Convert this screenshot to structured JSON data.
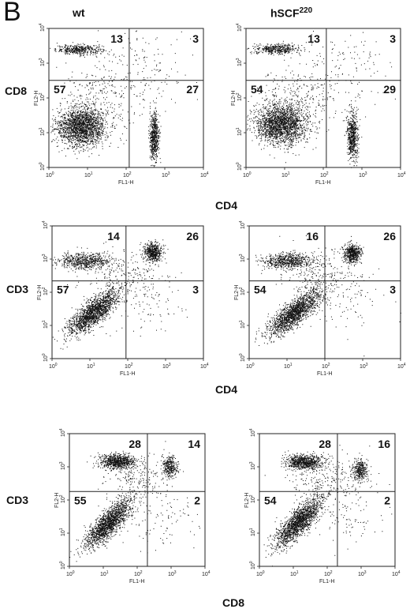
{
  "figure": {
    "panel_letter": "B",
    "columns": [
      {
        "id": "wt",
        "label": "wt",
        "sup": ""
      },
      {
        "id": "hscf",
        "label": "hSCF",
        "sup": "220"
      }
    ],
    "rows": [
      {
        "y_label": "CD8",
        "x_label": "CD4"
      },
      {
        "y_label": "CD3",
        "x_label": "CD4"
      },
      {
        "y_label": "CD3",
        "x_label": "CD8"
      }
    ],
    "axis_titles": {
      "x": "FL1-H",
      "y": "FL2-H"
    },
    "ticks": {
      "base": "10",
      "exponents": [
        "0",
        "1",
        "2",
        "3",
        "4"
      ]
    }
  },
  "chart_data": [
    {
      "type": "scatter",
      "row": 0,
      "column": "wt",
      "xlabel": "FL1-H",
      "ylabel": "FL2-H",
      "scale": "log",
      "xlim": [
        1,
        10000
      ],
      "ylim": [
        1,
        10000
      ],
      "quadrant_gate": {
        "x": 120,
        "y": 320
      },
      "quadrants": {
        "upper_left": 13,
        "upper_right": 3,
        "lower_left": 57,
        "lower_right": 27
      },
      "clusters": [
        {
          "x": 6,
          "y": 2500,
          "sx": 0.3,
          "sy": 0.07,
          "n": 420
        },
        {
          "x": 7,
          "y": 15,
          "sx": 0.32,
          "sy": 0.28,
          "n": 2000
        },
        {
          "x": 520,
          "y": 8,
          "sx": 0.06,
          "sy": 0.33,
          "n": 620
        },
        {
          "x": 300,
          "y": 600,
          "sx": 0.6,
          "sy": 0.6,
          "n": 160
        },
        {
          "x": 20,
          "y": 120,
          "sx": 0.5,
          "sy": 0.45,
          "n": 220
        }
      ]
    },
    {
      "type": "scatter",
      "row": 0,
      "column": "hSCF220",
      "xlabel": "FL1-H",
      "ylabel": "FL2-H",
      "scale": "log",
      "xlim": [
        1,
        10000
      ],
      "ylim": [
        1,
        10000
      ],
      "quadrant_gate": {
        "x": 120,
        "y": 320
      },
      "quadrants": {
        "upper_left": 13,
        "upper_right": 3,
        "lower_left": 54,
        "lower_right": 29
      },
      "clusters": [
        {
          "x": 6,
          "y": 2600,
          "sx": 0.3,
          "sy": 0.07,
          "n": 440
        },
        {
          "x": 8,
          "y": 18,
          "sx": 0.33,
          "sy": 0.3,
          "n": 2100
        },
        {
          "x": 560,
          "y": 8,
          "sx": 0.07,
          "sy": 0.33,
          "n": 640
        },
        {
          "x": 300,
          "y": 600,
          "sx": 0.6,
          "sy": 0.6,
          "n": 150
        },
        {
          "x": 20,
          "y": 120,
          "sx": 0.5,
          "sy": 0.45,
          "n": 220
        }
      ]
    },
    {
      "type": "scatter",
      "row": 1,
      "column": "wt",
      "xlabel": "FL1-H",
      "ylabel": "FL2-H",
      "scale": "log",
      "xlim": [
        1,
        10000
      ],
      "ylim": [
        1,
        10000
      ],
      "quadrant_gate": {
        "x": 90,
        "y": 220
      },
      "quadrants": {
        "upper_left": 14,
        "upper_right": 26,
        "lower_left": 57,
        "lower_right": 3
      },
      "clusters": [
        {
          "x": 7,
          "y": 900,
          "sx": 0.35,
          "sy": 0.12,
          "n": 620
        },
        {
          "x": 450,
          "y": 1600,
          "sx": 0.12,
          "sy": 0.14,
          "n": 560
        },
        {
          "x": 12,
          "y": 25,
          "sx": 0.34,
          "sy": 0.34,
          "n": 1700,
          "rho": 0.8
        },
        {
          "x": 300,
          "y": 60,
          "sx": 0.55,
          "sy": 0.55,
          "n": 120
        },
        {
          "x": 60,
          "y": 400,
          "sx": 0.5,
          "sy": 0.35,
          "n": 200
        }
      ]
    },
    {
      "type": "scatter",
      "row": 1,
      "column": "hSCF220",
      "xlabel": "FL1-H",
      "ylabel": "FL2-H",
      "scale": "log",
      "xlim": [
        1,
        10000
      ],
      "ylim": [
        1,
        10000
      ],
      "quadrant_gate": {
        "x": 100,
        "y": 220
      },
      "quadrants": {
        "upper_left": 16,
        "upper_right": 26,
        "lower_left": 54,
        "lower_right": 3
      },
      "clusters": [
        {
          "x": 10,
          "y": 900,
          "sx": 0.35,
          "sy": 0.12,
          "n": 660
        },
        {
          "x": 520,
          "y": 1500,
          "sx": 0.12,
          "sy": 0.14,
          "n": 560
        },
        {
          "x": 16,
          "y": 25,
          "sx": 0.34,
          "sy": 0.34,
          "n": 1700,
          "rho": 0.8
        },
        {
          "x": 300,
          "y": 60,
          "sx": 0.55,
          "sy": 0.55,
          "n": 120
        },
        {
          "x": 60,
          "y": 400,
          "sx": 0.5,
          "sy": 0.35,
          "n": 200
        }
      ]
    },
    {
      "type": "scatter",
      "row": 2,
      "column": "wt",
      "xlabel": "FL1-H",
      "ylabel": "FL2-H",
      "scale": "log",
      "xlim": [
        1,
        10000
      ],
      "ylim": [
        1,
        10000
      ],
      "quadrant_gate": {
        "x": 200,
        "y": 180
      },
      "quadrants": {
        "upper_left": 28,
        "upper_right": 14,
        "lower_left": 55,
        "lower_right": 2
      },
      "clusters": [
        {
          "x": 25,
          "y": 1500,
          "sx": 0.25,
          "sy": 0.11,
          "n": 800
        },
        {
          "x": 900,
          "y": 1000,
          "sx": 0.11,
          "sy": 0.16,
          "n": 320
        },
        {
          "x": 14,
          "y": 20,
          "sx": 0.34,
          "sy": 0.36,
          "n": 1700,
          "rho": 0.8
        },
        {
          "x": 600,
          "y": 40,
          "sx": 0.5,
          "sy": 0.5,
          "n": 100
        },
        {
          "x": 80,
          "y": 500,
          "sx": 0.5,
          "sy": 0.35,
          "n": 220
        }
      ]
    },
    {
      "type": "scatter",
      "row": 2,
      "column": "hSCF220",
      "xlabel": "FL1-H",
      "ylabel": "FL2-H",
      "scale": "log",
      "xlim": [
        1,
        10000
      ],
      "ylim": [
        1,
        10000
      ],
      "quadrant_gate": {
        "x": 200,
        "y": 180
      },
      "quadrants": {
        "upper_left": 28,
        "upper_right": 16,
        "lower_left": 54,
        "lower_right": 2
      },
      "clusters": [
        {
          "x": 20,
          "y": 1400,
          "sx": 0.27,
          "sy": 0.11,
          "n": 820
        },
        {
          "x": 900,
          "y": 800,
          "sx": 0.11,
          "sy": 0.16,
          "n": 340
        },
        {
          "x": 14,
          "y": 22,
          "sx": 0.34,
          "sy": 0.36,
          "n": 1700,
          "rho": 0.8
        },
        {
          "x": 600,
          "y": 40,
          "sx": 0.5,
          "sy": 0.5,
          "n": 100
        },
        {
          "x": 80,
          "y": 500,
          "sx": 0.5,
          "sy": 0.35,
          "n": 220
        }
      ]
    }
  ]
}
